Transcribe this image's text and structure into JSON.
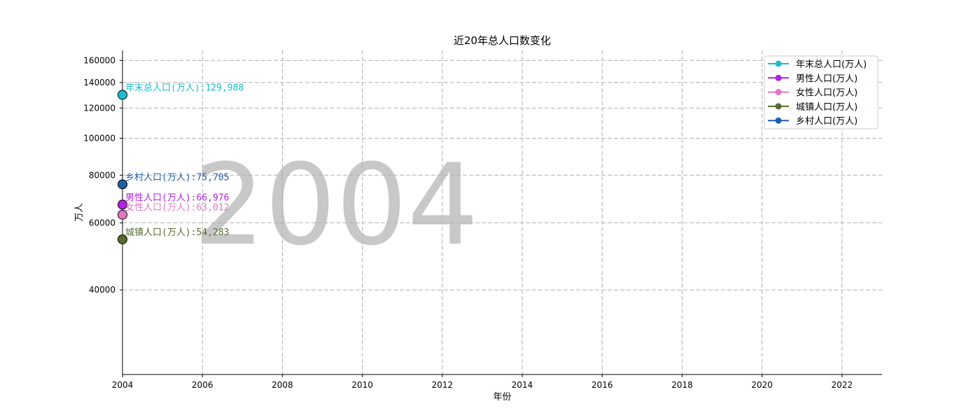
{
  "chart_data": {
    "type": "line",
    "title": "近20年总人口数变化",
    "xlabel": "年份",
    "ylabel": "万人",
    "watermark": "2004",
    "xlim": [
      2004,
      2023
    ],
    "ylim": [
      24000,
      170000
    ],
    "y_scale": "log",
    "grid": true,
    "legend_placement": "upper right",
    "x_ticks": [
      2004,
      2006,
      2008,
      2010,
      2012,
      2014,
      2016,
      2018,
      2020,
      2022
    ],
    "y_ticks": [
      40000,
      60000,
      80000,
      100000,
      120000,
      140000,
      160000
    ],
    "series": [
      {
        "name": "年末总人口(万人)",
        "color": "#17becf",
        "x": [
          2004
        ],
        "values": [
          129988
        ],
        "annotation": "年末总人口(万人):129,988"
      },
      {
        "name": "男性人口(万人)",
        "color": "#b51ee8",
        "x": [
          2004
        ],
        "values": [
          66976
        ],
        "annotation": "男性人口(万人):66,976"
      },
      {
        "name": "女性人口(万人)",
        "color": "#e377c2",
        "x": [
          2004
        ],
        "values": [
          63012
        ],
        "annotation": "女性人口(万人):63,012"
      },
      {
        "name": "城镇人口(万人)",
        "color": "#556b2f",
        "x": [
          2004
        ],
        "values": [
          54283
        ],
        "annotation": "城镇人口(万人):54,283"
      },
      {
        "name": "乡村人口(万人)",
        "color": "#1f5fa8",
        "x": [
          2004
        ],
        "values": [
          75705
        ],
        "annotation": "乡村人口(万人):75,705"
      }
    ]
  }
}
